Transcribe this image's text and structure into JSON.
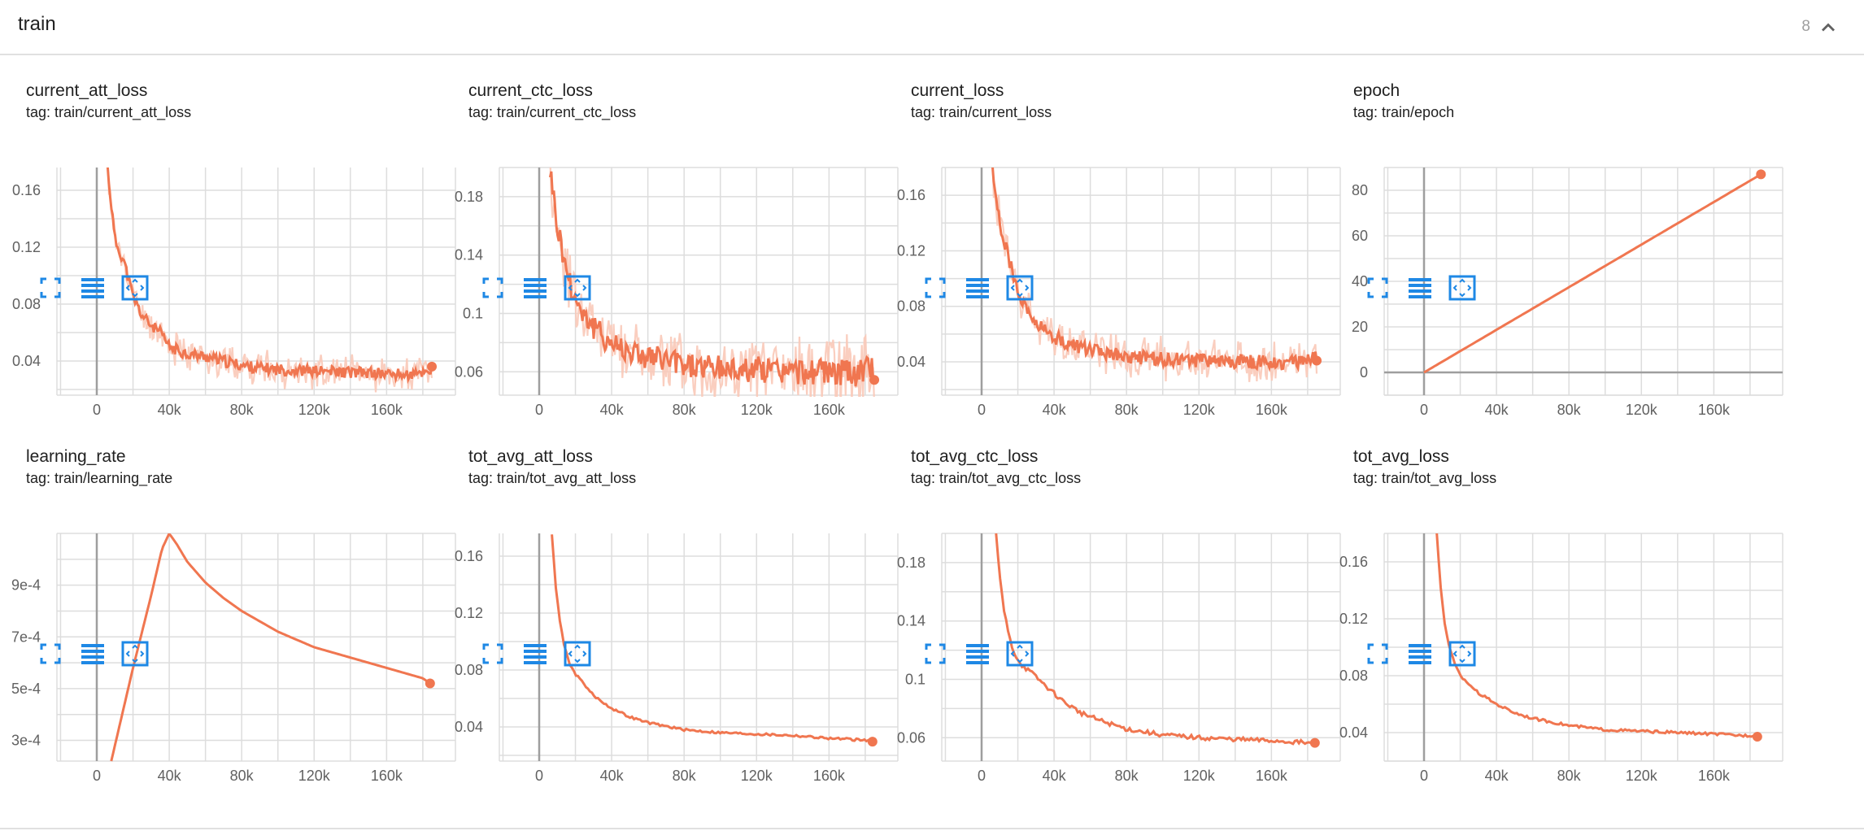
{
  "group": {
    "title": "train",
    "count": "8"
  },
  "colors": {
    "series": "#f07650",
    "series_light": "#f9c9b8",
    "grid": "#dddddd",
    "axis": "#9e9e9e",
    "icon": "#1e88e5"
  },
  "icons": {
    "expand": "fullscreen-icon",
    "data": "data-table-icon",
    "fit": "fit-domain-icon",
    "toggle": "chevron-up-icon"
  },
  "charts": [
    {
      "title": "current_att_loss",
      "tag": "tag: train/current_att_loss",
      "chart_data": {
        "type": "line",
        "series_kind": "noisy",
        "xlim": [
          -22000,
          198000
        ],
        "ylim": [
          0.016,
          0.176
        ],
        "xticks": [
          0,
          40000,
          80000,
          120000,
          160000
        ],
        "xtick_labels": [
          "0",
          "40k",
          "80k",
          "120k",
          "160k"
        ],
        "yticks": [
          0.04,
          0.08,
          0.12,
          0.16
        ],
        "ytick_labels": [
          "0.04",
          "0.08",
          "0.12",
          "0.16"
        ],
        "x": [
          6000,
          10000,
          15000,
          20000,
          25000,
          30000,
          35000,
          40000,
          50000,
          60000,
          70000,
          80000,
          90000,
          100000,
          120000,
          140000,
          160000,
          175000,
          185000
        ],
        "y": [
          0.175,
          0.125,
          0.11,
          0.085,
          0.072,
          0.065,
          0.06,
          0.05,
          0.045,
          0.043,
          0.04,
          0.037,
          0.035,
          0.034,
          0.033,
          0.032,
          0.031,
          0.03,
          0.034
        ],
        "noise": 0.004,
        "noise_light": 0.01
      }
    },
    {
      "title": "current_ctc_loss",
      "tag": "tag: train/current_ctc_loss",
      "chart_data": {
        "type": "line",
        "series_kind": "noisy",
        "xlim": [
          -22000,
          198000
        ],
        "ylim": [
          0.044,
          0.2
        ],
        "xticks": [
          0,
          40000,
          80000,
          120000,
          160000
        ],
        "xtick_labels": [
          "0",
          "40k",
          "80k",
          "120k",
          "160k"
        ],
        "yticks": [
          0.06,
          0.1,
          0.14,
          0.18
        ],
        "ytick_labels": [
          "0.06",
          "0.1",
          "0.14",
          "0.18"
        ],
        "x": [
          6000,
          10000,
          15000,
          20000,
          25000,
          30000,
          40000,
          50000,
          60000,
          70000,
          80000,
          100000,
          120000,
          140000,
          160000,
          175000,
          185000
        ],
        "y": [
          0.2,
          0.16,
          0.13,
          0.11,
          0.1,
          0.09,
          0.08,
          0.075,
          0.07,
          0.068,
          0.065,
          0.062,
          0.062,
          0.06,
          0.06,
          0.059,
          0.063
        ],
        "noise": 0.009,
        "noise_light": 0.02
      }
    },
    {
      "title": "current_loss",
      "tag": "tag: train/current_loss",
      "chart_data": {
        "type": "line",
        "series_kind": "noisy",
        "xlim": [
          -22000,
          198000
        ],
        "ylim": [
          0.016,
          0.18
        ],
        "xticks": [
          0,
          40000,
          80000,
          120000,
          160000
        ],
        "xtick_labels": [
          "0",
          "40k",
          "80k",
          "120k",
          "160k"
        ],
        "yticks": [
          0.04,
          0.08,
          0.12,
          0.16
        ],
        "ytick_labels": [
          "0.04",
          "0.08",
          "0.12",
          "0.16"
        ],
        "x": [
          6000,
          10000,
          15000,
          20000,
          25000,
          30000,
          40000,
          50000,
          60000,
          70000,
          80000,
          100000,
          120000,
          140000,
          160000,
          175000,
          185000
        ],
        "y": [
          0.18,
          0.14,
          0.115,
          0.09,
          0.075,
          0.068,
          0.058,
          0.052,
          0.048,
          0.046,
          0.044,
          0.042,
          0.041,
          0.04,
          0.04,
          0.039,
          0.043
        ],
        "noise": 0.005,
        "noise_light": 0.012
      }
    },
    {
      "title": "epoch",
      "tag": "tag: train/epoch",
      "chart_data": {
        "type": "line",
        "series_kind": "smooth",
        "xlim": [
          -22000,
          198000
        ],
        "ylim": [
          -10,
          90
        ],
        "xticks": [
          0,
          40000,
          80000,
          120000,
          160000
        ],
        "xtick_labels": [
          "0",
          "40k",
          "80k",
          "120k",
          "160k"
        ],
        "yticks": [
          0,
          20,
          40,
          60,
          80
        ],
        "ytick_labels": [
          "0",
          "20",
          "40",
          "60",
          "80"
        ],
        "zero_line_y": true,
        "x": [
          0,
          186000
        ],
        "y": [
          0,
          87
        ]
      }
    },
    {
      "title": "learning_rate",
      "tag": "tag: train/learning_rate",
      "chart_data": {
        "type": "line",
        "series_kind": "smooth",
        "xlim": [
          -22000,
          198000
        ],
        "ylim": [
          0.00022,
          0.0011
        ],
        "xticks": [
          0,
          40000,
          80000,
          120000,
          160000
        ],
        "xtick_labels": [
          "0",
          "40k",
          "80k",
          "120k",
          "160k"
        ],
        "yticks": [
          0.0003,
          0.0005,
          0.0007,
          0.0009
        ],
        "ytick_labels": [
          "3e-4",
          "5e-4",
          "7e-4",
          "9e-4"
        ],
        "x": [
          8000,
          20000,
          30000,
          36000,
          40000,
          44000,
          50000,
          60000,
          70000,
          80000,
          90000,
          100000,
          110000,
          120000,
          130000,
          140000,
          150000,
          160000,
          170000,
          180000,
          184000
        ],
        "y": [
          0.00022,
          0.00058,
          0.00086,
          0.00104,
          0.0011,
          0.00106,
          0.00099,
          0.00091,
          0.00085,
          0.0008,
          0.00076,
          0.00072,
          0.00069,
          0.00066,
          0.00064,
          0.00062,
          0.0006,
          0.00058,
          0.00056,
          0.00054,
          0.00052
        ]
      }
    },
    {
      "title": "tot_avg_att_loss",
      "tag": "tag: train/tot_avg_att_loss",
      "chart_data": {
        "type": "line",
        "series_kind": "smooth",
        "xlim": [
          -22000,
          198000
        ],
        "ylim": [
          0.016,
          0.176
        ],
        "xticks": [
          0,
          40000,
          80000,
          120000,
          160000
        ],
        "xtick_labels": [
          "0",
          "40k",
          "80k",
          "120k",
          "160k"
        ],
        "yticks": [
          0.04,
          0.08,
          0.12,
          0.16
        ],
        "ytick_labels": [
          "0.04",
          "0.08",
          "0.12",
          "0.16"
        ],
        "x": [
          7000,
          9000,
          11000,
          14000,
          17000,
          20000,
          25000,
          30000,
          40000,
          50000,
          60000,
          80000,
          100000,
          120000,
          140000,
          160000,
          175000,
          184000
        ],
        "y": [
          0.176,
          0.14,
          0.118,
          0.096,
          0.084,
          0.077,
          0.07,
          0.062,
          0.053,
          0.047,
          0.043,
          0.038,
          0.036,
          0.035,
          0.034,
          0.032,
          0.031,
          0.03
        ],
        "noise": 0.0008
      }
    },
    {
      "title": "tot_avg_ctc_loss",
      "tag": "tag: train/tot_avg_ctc_loss",
      "chart_data": {
        "type": "line",
        "series_kind": "smooth",
        "xlim": [
          -22000,
          198000
        ],
        "ylim": [
          0.044,
          0.2
        ],
        "xticks": [
          0,
          40000,
          80000,
          120000,
          160000
        ],
        "xtick_labels": [
          "0",
          "40k",
          "80k",
          "120k",
          "160k"
        ],
        "yticks": [
          0.06,
          0.1,
          0.14,
          0.18
        ],
        "ytick_labels": [
          "0.06",
          "0.1",
          "0.14",
          "0.18"
        ],
        "x": [
          8000,
          10000,
          12000,
          15000,
          18000,
          22000,
          28000,
          35000,
          45000,
          55000,
          65000,
          80000,
          100000,
          120000,
          140000,
          160000,
          175000,
          184000
        ],
        "y": [
          0.2,
          0.17,
          0.15,
          0.13,
          0.118,
          0.11,
          0.104,
          0.096,
          0.085,
          0.077,
          0.072,
          0.066,
          0.062,
          0.06,
          0.059,
          0.058,
          0.057,
          0.056
        ],
        "noise": 0.0015
      }
    },
    {
      "title": "tot_avg_loss",
      "tag": "tag: train/tot_avg_loss",
      "chart_data": {
        "type": "line",
        "series_kind": "smooth",
        "xlim": [
          -22000,
          198000
        ],
        "ylim": [
          0.02,
          0.18
        ],
        "xticks": [
          0,
          40000,
          80000,
          120000,
          160000
        ],
        "xtick_labels": [
          "0",
          "40k",
          "80k",
          "120k",
          "160k"
        ],
        "yticks": [
          0.04,
          0.08,
          0.12,
          0.16
        ],
        "ytick_labels": [
          "0.04",
          "0.08",
          "0.12",
          "0.16"
        ],
        "x": [
          7000,
          9000,
          11000,
          14000,
          17000,
          20000,
          25000,
          30000,
          40000,
          50000,
          60000,
          80000,
          100000,
          120000,
          140000,
          160000,
          175000,
          184000
        ],
        "y": [
          0.18,
          0.145,
          0.12,
          0.1,
          0.088,
          0.08,
          0.074,
          0.068,
          0.06,
          0.054,
          0.05,
          0.045,
          0.042,
          0.041,
          0.04,
          0.039,
          0.038,
          0.038
        ],
        "noise": 0.0009
      }
    }
  ]
}
